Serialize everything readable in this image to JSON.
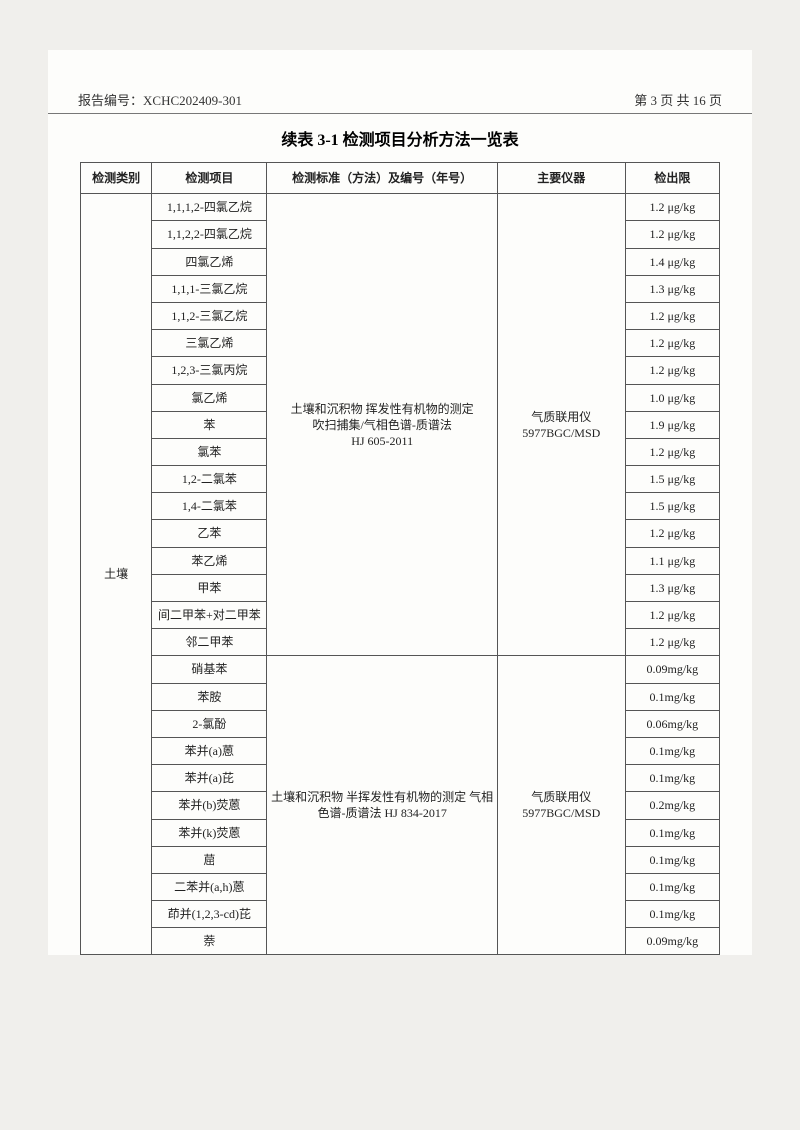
{
  "header": {
    "report_label": "报告编号：",
    "report_no": "XCHC202409-301",
    "page_info": "第 3 页 共 16 页"
  },
  "title": "续表 3-1  检测项目分析方法一览表",
  "columns": [
    "检测类别",
    "检测项目",
    "检测标准（方法）及编号（年号）",
    "主要仪器",
    "检出限"
  ],
  "category": "土壤",
  "group1": {
    "standard": "土壤和沉积物 挥发性有机物的测定\n吹扫捕集/气相色谱-质谱法\nHJ 605-2011",
    "instrument": "气质联用仪\n5977BGC/MSD",
    "rows": [
      {
        "item": "1,1,1,2-四氯乙烷",
        "limit": "1.2 μg/kg"
      },
      {
        "item": "1,1,2,2-四氯乙烷",
        "limit": "1.2 μg/kg"
      },
      {
        "item": "四氯乙烯",
        "limit": "1.4 μg/kg"
      },
      {
        "item": "1,1,1-三氯乙烷",
        "limit": "1.3 μg/kg"
      },
      {
        "item": "1,1,2-三氯乙烷",
        "limit": "1.2 μg/kg"
      },
      {
        "item": "三氯乙烯",
        "limit": "1.2 μg/kg"
      },
      {
        "item": "1,2,3-三氯丙烷",
        "limit": "1.2 μg/kg"
      },
      {
        "item": "氯乙烯",
        "limit": "1.0 μg/kg"
      },
      {
        "item": "苯",
        "limit": "1.9 μg/kg"
      },
      {
        "item": "氯苯",
        "limit": "1.2 μg/kg"
      },
      {
        "item": "1,2-二氯苯",
        "limit": "1.5 μg/kg"
      },
      {
        "item": "1,4-二氯苯",
        "limit": "1.5 μg/kg"
      },
      {
        "item": "乙苯",
        "limit": "1.2 μg/kg"
      },
      {
        "item": "苯乙烯",
        "limit": "1.1 μg/kg"
      },
      {
        "item": "甲苯",
        "limit": "1.3 μg/kg"
      },
      {
        "item": "间二甲苯+对二甲苯",
        "limit": "1.2 μg/kg"
      },
      {
        "item": "邻二甲苯",
        "limit": "1.2 μg/kg"
      }
    ]
  },
  "group2": {
    "standard": "土壤和沉积物 半挥发性有机物的测定 气相色谱-质谱法 HJ 834-2017",
    "instrument": "气质联用仪\n5977BGC/MSD",
    "rows": [
      {
        "item": "硝基苯",
        "limit": "0.09mg/kg"
      },
      {
        "item": "苯胺",
        "limit": "0.1mg/kg"
      },
      {
        "item": "2-氯酚",
        "limit": "0.06mg/kg"
      },
      {
        "item": "苯并(a)蒽",
        "limit": "0.1mg/kg"
      },
      {
        "item": "苯并(a)芘",
        "limit": "0.1mg/kg"
      },
      {
        "item": "苯并(b)荧蒽",
        "limit": "0.2mg/kg"
      },
      {
        "item": "苯并(k)荧蒽",
        "limit": "0.1mg/kg"
      },
      {
        "item": "䓛",
        "limit": "0.1mg/kg"
      },
      {
        "item": "二苯并(a,h)蒽",
        "limit": "0.1mg/kg"
      },
      {
        "item": "茚并(1,2,3-cd)芘",
        "limit": "0.1mg/kg"
      },
      {
        "item": "萘",
        "limit": "0.09mg/kg"
      }
    ]
  }
}
